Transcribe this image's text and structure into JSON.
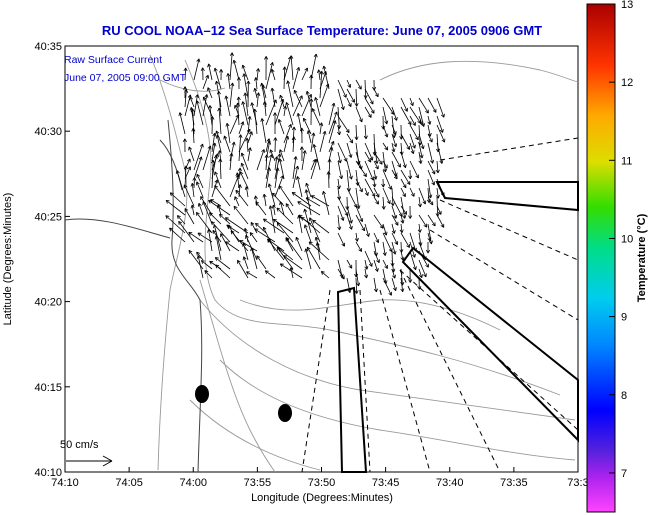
{
  "title": "RU COOL  NOAA–12  Sea Surface Temperature:  June 07, 2005 0906 GMT",
  "legend": {
    "line1": "Raw Surface Current",
    "line2": "June 07, 2005 09:00 GMT",
    "scale_label": "50 cm/s"
  },
  "axes": {
    "xlabel": "Longitude (Degrees:Minutes)",
    "ylabel": "Latitude (Degrees:Minutes)",
    "x_ticks": [
      "74:10",
      "74:05",
      "74:00",
      "73:55",
      "73:50",
      "73:45",
      "73:40",
      "73:35",
      "73:3"
    ],
    "y_ticks": [
      "40:35",
      "40:30",
      "40:25",
      "40:20",
      "40:15",
      "40:10"
    ]
  },
  "colorbar": {
    "label": "Temperature (°C)",
    "ticks": [
      "13",
      "12",
      "11",
      "10",
      "9",
      "8",
      "7"
    ],
    "range": [
      6.5,
      13
    ]
  },
  "colors": {
    "title": "#0000cc",
    "contour": "#999999",
    "vector": "#000000",
    "land": "#ffffff"
  }
}
